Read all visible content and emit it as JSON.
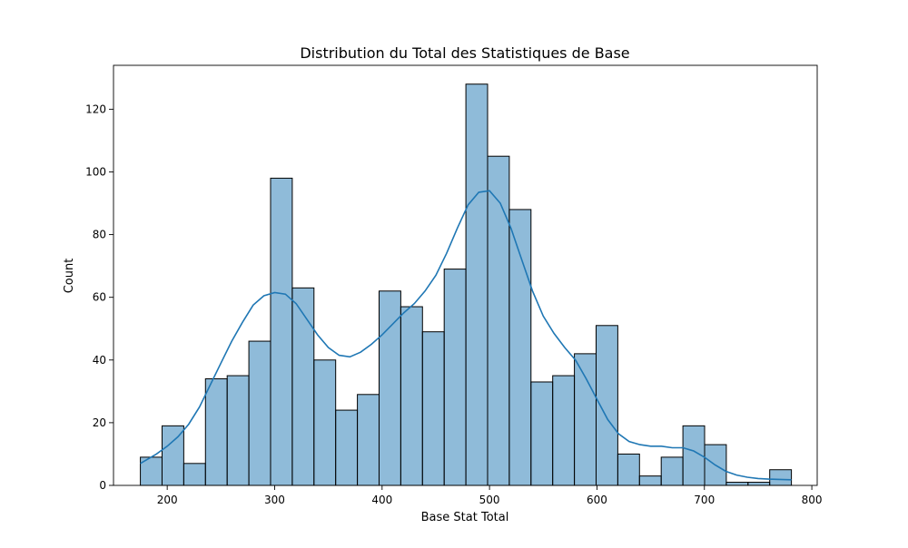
{
  "chart_data": {
    "type": "bar",
    "title": "Distribution du Total des Statistiques de Base",
    "xlabel": "Base Stat Total",
    "ylabel": "Count",
    "xlim": [
      150,
      805
    ],
    "ylim": [
      0,
      134
    ],
    "xticks": [
      200,
      300,
      400,
      500,
      600,
      700,
      800
    ],
    "yticks": [
      0,
      20,
      40,
      60,
      80,
      100,
      120
    ],
    "grid": false,
    "bins": [
      {
        "x0": 175,
        "x1": 195.2,
        "count": 9
      },
      {
        "x0": 195.2,
        "x1": 215.4,
        "count": 19
      },
      {
        "x0": 215.4,
        "x1": 235.6,
        "count": 7
      },
      {
        "x0": 235.6,
        "x1": 255.8,
        "count": 34
      },
      {
        "x0": 255.8,
        "x1": 276.0,
        "count": 35
      },
      {
        "x0": 276.0,
        "x1": 296.2,
        "count": 46
      },
      {
        "x0": 296.2,
        "x1": 316.4,
        "count": 98
      },
      {
        "x0": 316.4,
        "x1": 336.6,
        "count": 63
      },
      {
        "x0": 336.6,
        "x1": 356.8,
        "count": 40
      },
      {
        "x0": 356.8,
        "x1": 377.0,
        "count": 24
      },
      {
        "x0": 377.0,
        "x1": 397.2,
        "count": 29
      },
      {
        "x0": 397.2,
        "x1": 417.4,
        "count": 62
      },
      {
        "x0": 417.4,
        "x1": 437.6,
        "count": 57
      },
      {
        "x0": 437.6,
        "x1": 457.8,
        "count": 49
      },
      {
        "x0": 457.8,
        "x1": 478.0,
        "count": 69
      },
      {
        "x0": 478.0,
        "x1": 498.2,
        "count": 128
      },
      {
        "x0": 498.2,
        "x1": 518.4,
        "count": 105
      },
      {
        "x0": 518.4,
        "x1": 538.6,
        "count": 88
      },
      {
        "x0": 538.6,
        "x1": 558.8,
        "count": 33
      },
      {
        "x0": 558.8,
        "x1": 579.0,
        "count": 35
      },
      {
        "x0": 579.0,
        "x1": 599.2,
        "count": 42
      },
      {
        "x0": 599.2,
        "x1": 619.4,
        "count": 51
      },
      {
        "x0": 619.4,
        "x1": 639.6,
        "count": 10
      },
      {
        "x0": 639.6,
        "x1": 659.8,
        "count": 3
      },
      {
        "x0": 659.8,
        "x1": 680.0,
        "count": 9
      },
      {
        "x0": 680.0,
        "x1": 700.2,
        "count": 19
      },
      {
        "x0": 700.2,
        "x1": 720.4,
        "count": 13
      },
      {
        "x0": 720.4,
        "x1": 740.6,
        "count": 1
      },
      {
        "x0": 740.6,
        "x1": 760.8,
        "count": 1
      },
      {
        "x0": 760.8,
        "x1": 781.0,
        "count": 5
      }
    ],
    "kde": {
      "x": [
        175,
        190,
        200,
        210,
        220,
        230,
        240,
        250,
        260,
        270,
        280,
        290,
        300,
        310,
        320,
        330,
        340,
        350,
        360,
        370,
        380,
        390,
        400,
        410,
        420,
        430,
        440,
        450,
        460,
        470,
        480,
        490,
        500,
        510,
        520,
        530,
        540,
        550,
        560,
        570,
        580,
        590,
        600,
        610,
        620,
        630,
        640,
        650,
        660,
        670,
        680,
        690,
        700,
        710,
        720,
        730,
        740,
        750,
        760,
        770,
        781
      ],
      "y": [
        7,
        10,
        12.5,
        15.5,
        19.5,
        25,
        32,
        39,
        46,
        52,
        57.5,
        60.5,
        61.5,
        61,
        58,
        53,
        48,
        44,
        41.5,
        41,
        42.5,
        45,
        48,
        51.5,
        55,
        58,
        62,
        67,
        74,
        82,
        89.5,
        93.5,
        94,
        90,
        82,
        72,
        62,
        54,
        48.5,
        44,
        40,
        34,
        27.5,
        21,
        16.5,
        14,
        13,
        12.5,
        12.5,
        12,
        12,
        11,
        9,
        6.5,
        4.5,
        3.3,
        2.6,
        2.2,
        2,
        1.9,
        1.8
      ]
    },
    "colors": {
      "bar_fill": "#1f77b4",
      "bar_opacity": 0.5,
      "bar_edge": "#000000",
      "kde_line": "#1f77b4"
    }
  }
}
